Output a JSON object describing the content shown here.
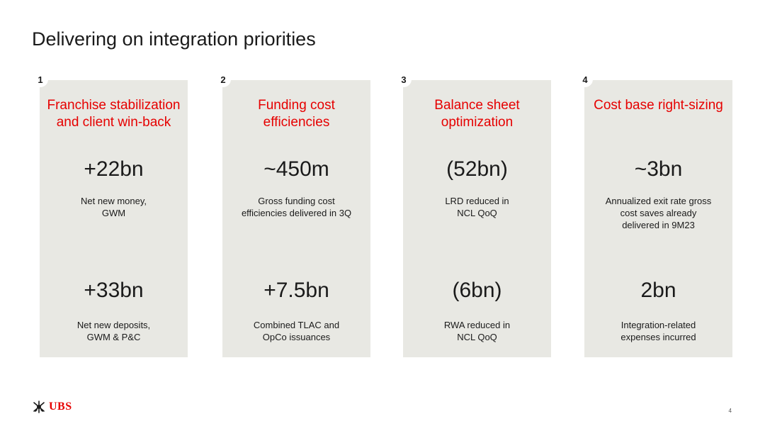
{
  "title": "Delivering on integration priorities",
  "cards": [
    {
      "number": "1",
      "title": "Franchise stabilization\nand client win-back",
      "metric1": "+22bn",
      "desc1": "Net new money,\nGWM",
      "metric2": "+33bn",
      "desc2": "Net new deposits,\nGWM & P&C"
    },
    {
      "number": "2",
      "title": "Funding cost\nefficiencies",
      "metric1": "~450m",
      "desc1": "Gross funding cost\nefficiencies delivered in 3Q",
      "metric2": "+7.5bn",
      "desc2": "Combined TLAC and\nOpCo issuances"
    },
    {
      "number": "3",
      "title": "Balance sheet\noptimization",
      "metric1": "(52bn)",
      "desc1": "LRD reduced in\nNCL QoQ",
      "metric2": "(6bn)",
      "desc2": "RWA reduced in\nNCL QoQ"
    },
    {
      "number": "4",
      "title": "Cost base right-sizing",
      "metric1": "~3bn",
      "desc1": "Annualized exit rate gross\ncost saves already\ndelivered in 9M23",
      "metric2": "2bn",
      "desc2": "Integration-related\nexpenses incurred"
    }
  ],
  "footer": {
    "logo_text": "UBS",
    "logo_icon": "ubs-keys-icon",
    "page_number": "4"
  },
  "colors": {
    "accent": "#e60000",
    "card_bg": "#e8e8e3",
    "text": "#1a1a1a"
  }
}
